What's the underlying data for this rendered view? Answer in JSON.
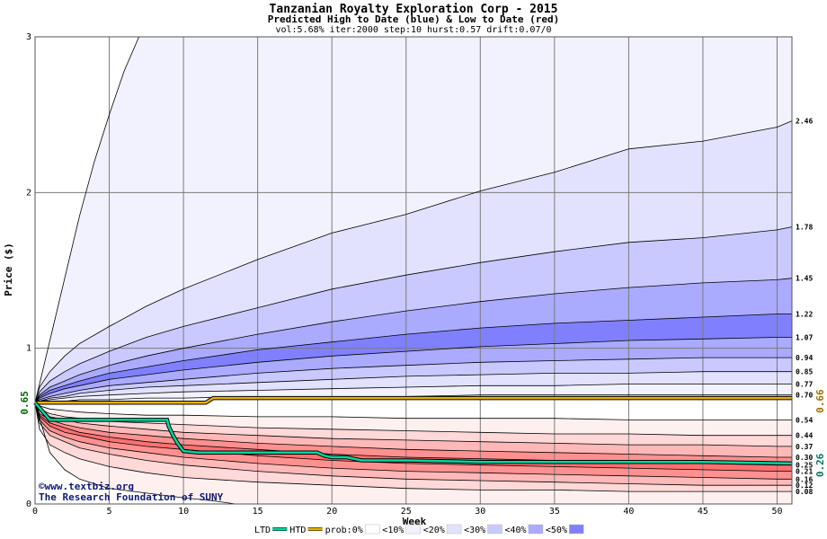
{
  "chart_data": {
    "type": "area",
    "title": "Tanzanian Royalty Exploration Corp - 2015",
    "subtitle": "Predicted High to Date (blue) &  Low to Date (red)",
    "params": "vol:5.68% iter:2000 step:10 hurst:0.57 drift:0.07/0",
    "xlabel": "Week",
    "ylabel": "Price ($)",
    "xlim": [
      0,
      51
    ],
    "ylim": [
      0,
      3
    ],
    "x_ticks": [
      "0",
      "5",
      "10",
      "15",
      "20",
      "25",
      "30",
      "35",
      "40",
      "45",
      "50"
    ],
    "y_ticks": [
      "0",
      "1",
      "2",
      "3"
    ],
    "start_value": 0.65,
    "start_label": "0.65",
    "end_value": 0.66,
    "end_label": "0.66",
    "htd_label": "0.26",
    "x": [
      0,
      0.3,
      1,
      2,
      3,
      5,
      7.5,
      10,
      15,
      20,
      25,
      30,
      35,
      40,
      45,
      50,
      51
    ],
    "upper_series": [
      {
        "label": "2.46",
        "values": [
          0.65,
          0.75,
          0.85,
          0.95,
          1.03,
          1.14,
          1.27,
          1.38,
          1.57,
          1.74,
          1.86,
          2.01,
          2.13,
          2.28,
          2.33,
          2.42,
          2.46
        ]
      },
      {
        "label": "1.78",
        "values": [
          0.65,
          0.72,
          0.79,
          0.85,
          0.9,
          0.98,
          1.07,
          1.14,
          1.26,
          1.38,
          1.47,
          1.55,
          1.62,
          1.68,
          1.71,
          1.76,
          1.78
        ]
      },
      {
        "label": "1.45",
        "values": [
          0.65,
          0.7,
          0.75,
          0.79,
          0.83,
          0.89,
          0.95,
          1.0,
          1.09,
          1.17,
          1.24,
          1.3,
          1.35,
          1.39,
          1.42,
          1.44,
          1.45
        ]
      },
      {
        "label": "1.22",
        "values": [
          0.65,
          0.69,
          0.73,
          0.76,
          0.79,
          0.84,
          0.88,
          0.92,
          0.99,
          1.04,
          1.09,
          1.13,
          1.16,
          1.18,
          1.2,
          1.22,
          1.22
        ]
      },
      {
        "label": "1.07",
        "values": [
          0.65,
          0.68,
          0.71,
          0.74,
          0.76,
          0.8,
          0.83,
          0.86,
          0.91,
          0.95,
          0.98,
          1.01,
          1.03,
          1.05,
          1.06,
          1.07,
          1.07
        ]
      },
      {
        "label": "0.94",
        "values": [
          0.65,
          0.67,
          0.69,
          0.71,
          0.73,
          0.76,
          0.78,
          0.8,
          0.84,
          0.87,
          0.89,
          0.91,
          0.92,
          0.93,
          0.94,
          0.94,
          0.94
        ]
      },
      {
        "label": "0.85",
        "values": [
          0.65,
          0.66,
          0.68,
          0.69,
          0.71,
          0.73,
          0.75,
          0.76,
          0.78,
          0.8,
          0.82,
          0.83,
          0.84,
          0.84,
          0.85,
          0.85,
          0.85
        ]
      },
      {
        "label": "0.77",
        "values": [
          0.65,
          0.66,
          0.67,
          0.68,
          0.69,
          0.7,
          0.71,
          0.72,
          0.73,
          0.74,
          0.75,
          0.76,
          0.76,
          0.77,
          0.77,
          0.77,
          0.77
        ]
      },
      {
        "label": "0.70",
        "values": [
          0.65,
          0.65,
          0.66,
          0.66,
          0.67,
          0.67,
          0.68,
          0.68,
          0.69,
          0.69,
          0.69,
          0.7,
          0.7,
          0.7,
          0.7,
          0.7,
          0.7
        ]
      }
    ],
    "lower_series": [
      {
        "label": "0.54",
        "values": [
          0.65,
          0.63,
          0.61,
          0.6,
          0.59,
          0.58,
          0.57,
          0.57,
          0.56,
          0.56,
          0.55,
          0.55,
          0.55,
          0.54,
          0.54,
          0.54,
          0.54
        ]
      },
      {
        "label": "0.44",
        "values": [
          0.65,
          0.61,
          0.58,
          0.56,
          0.55,
          0.53,
          0.52,
          0.51,
          0.49,
          0.48,
          0.47,
          0.46,
          0.45,
          0.45,
          0.44,
          0.44,
          0.44
        ]
      },
      {
        "label": "0.37",
        "values": [
          0.65,
          0.6,
          0.56,
          0.54,
          0.52,
          0.5,
          0.48,
          0.46,
          0.44,
          0.42,
          0.41,
          0.4,
          0.39,
          0.38,
          0.38,
          0.37,
          0.37
        ]
      },
      {
        "label": "0.30",
        "values": [
          0.65,
          0.58,
          0.54,
          0.51,
          0.49,
          0.46,
          0.44,
          0.42,
          0.39,
          0.37,
          0.35,
          0.34,
          0.33,
          0.32,
          0.31,
          0.3,
          0.3
        ]
      },
      {
        "label": "0.25",
        "values": [
          0.65,
          0.57,
          0.52,
          0.49,
          0.46,
          0.43,
          0.4,
          0.38,
          0.35,
          0.32,
          0.3,
          0.29,
          0.28,
          0.27,
          0.26,
          0.25,
          0.25
        ]
      },
      {
        "label": "0.21",
        "values": [
          0.65,
          0.56,
          0.5,
          0.46,
          0.44,
          0.4,
          0.37,
          0.35,
          0.31,
          0.28,
          0.26,
          0.25,
          0.24,
          0.23,
          0.22,
          0.21,
          0.21
        ]
      },
      {
        "label": "0.16",
        "values": [
          0.65,
          0.54,
          0.47,
          0.43,
          0.4,
          0.36,
          0.33,
          0.3,
          0.26,
          0.23,
          0.21,
          0.2,
          0.19,
          0.18,
          0.17,
          0.16,
          0.16
        ]
      },
      {
        "label": "0.12",
        "values": [
          0.65,
          0.52,
          0.44,
          0.4,
          0.36,
          0.32,
          0.28,
          0.25,
          0.21,
          0.18,
          0.16,
          0.15,
          0.14,
          0.13,
          0.12,
          0.12,
          0.12
        ]
      },
      {
        "label": "0.08",
        "values": [
          0.65,
          0.48,
          0.38,
          0.33,
          0.29,
          0.24,
          0.2,
          0.17,
          0.14,
          0.12,
          0.1,
          0.09,
          0.09,
          0.08,
          0.08,
          0.08,
          0.08
        ]
      }
    ],
    "extreme_high": {
      "x": [
        0,
        1,
        2,
        3,
        4,
        5,
        6,
        7
      ],
      "values": [
        0.65,
        1.05,
        1.45,
        1.85,
        2.2,
        2.5,
        2.78,
        3.0
      ]
    },
    "extreme_low": {
      "x": [
        0,
        1,
        2,
        3,
        5,
        7.5,
        10,
        12,
        13.5
      ],
      "values": [
        0.65,
        0.33,
        0.22,
        0.16,
        0.1,
        0.07,
        0.04,
        0.02,
        0.0
      ]
    },
    "ltd_line": {
      "x": [
        0,
        1,
        2,
        3,
        5,
        7,
        8.9,
        9.0,
        9.3,
        9.6,
        10,
        11,
        12,
        15,
        19,
        19.5,
        20,
        21,
        22,
        25,
        30,
        35,
        40,
        45,
        51
      ],
      "values": [
        0.65,
        0.54,
        0.54,
        0.54,
        0.54,
        0.54,
        0.54,
        0.5,
        0.44,
        0.39,
        0.34,
        0.33,
        0.33,
        0.33,
        0.33,
        0.31,
        0.3,
        0.3,
        0.28,
        0.28,
        0.27,
        0.27,
        0.27,
        0.27,
        0.26
      ]
    },
    "htd_line": {
      "x": [
        0,
        1,
        11.5,
        12,
        51
      ],
      "values": [
        0.65,
        0.65,
        0.65,
        0.68,
        0.68
      ]
    },
    "legend": [
      {
        "label": "LTD",
        "kind": "line",
        "color": "#00d8a0"
      },
      {
        "label": "HTD",
        "kind": "line",
        "color": "#e8b000"
      },
      {
        "label": "prob:0%",
        "kind": "swatch",
        "color": "#ffffff"
      },
      {
        "label": "<10%",
        "kind": "swatch",
        "color": "#f2f2ff"
      },
      {
        "label": "<20%",
        "kind": "swatch",
        "color": "#e2e2ff"
      },
      {
        "label": "<30%",
        "kind": "swatch",
        "color": "#c9c9ff"
      },
      {
        "label": "<40%",
        "kind": "swatch",
        "color": "#aaaaff"
      },
      {
        "label": "<50%",
        "kind": "swatch",
        "color": "#8080ff"
      }
    ],
    "credit_line1": "©www.textbiz.org",
    "credit_line2": "The Research Foundation of SUNY",
    "colors": {
      "upper_fills": [
        "#f2f2ff",
        "#e2e2ff",
        "#c9c9ff",
        "#aaaaff",
        "#8080ff",
        "#aaaaff",
        "#c9c9ff",
        "#e2e2ff",
        "#f2f2ff",
        "#ffffff"
      ],
      "lower_fills": [
        "#ffffff",
        "#fff0f0",
        "#ffd8d8",
        "#ffb8b8",
        "#ff9090",
        "#ff7070",
        "#ff9090",
        "#ffb8b8",
        "#ffd8d8",
        "#fff0f0"
      ],
      "ltd": "#00d8a0",
      "htd": "#e8b000",
      "start_label": "#006600",
      "end_label": "#a07000",
      "htd_label": "#007766",
      "credit": "#111a7a",
      "grid": "#7a7a7a"
    }
  }
}
